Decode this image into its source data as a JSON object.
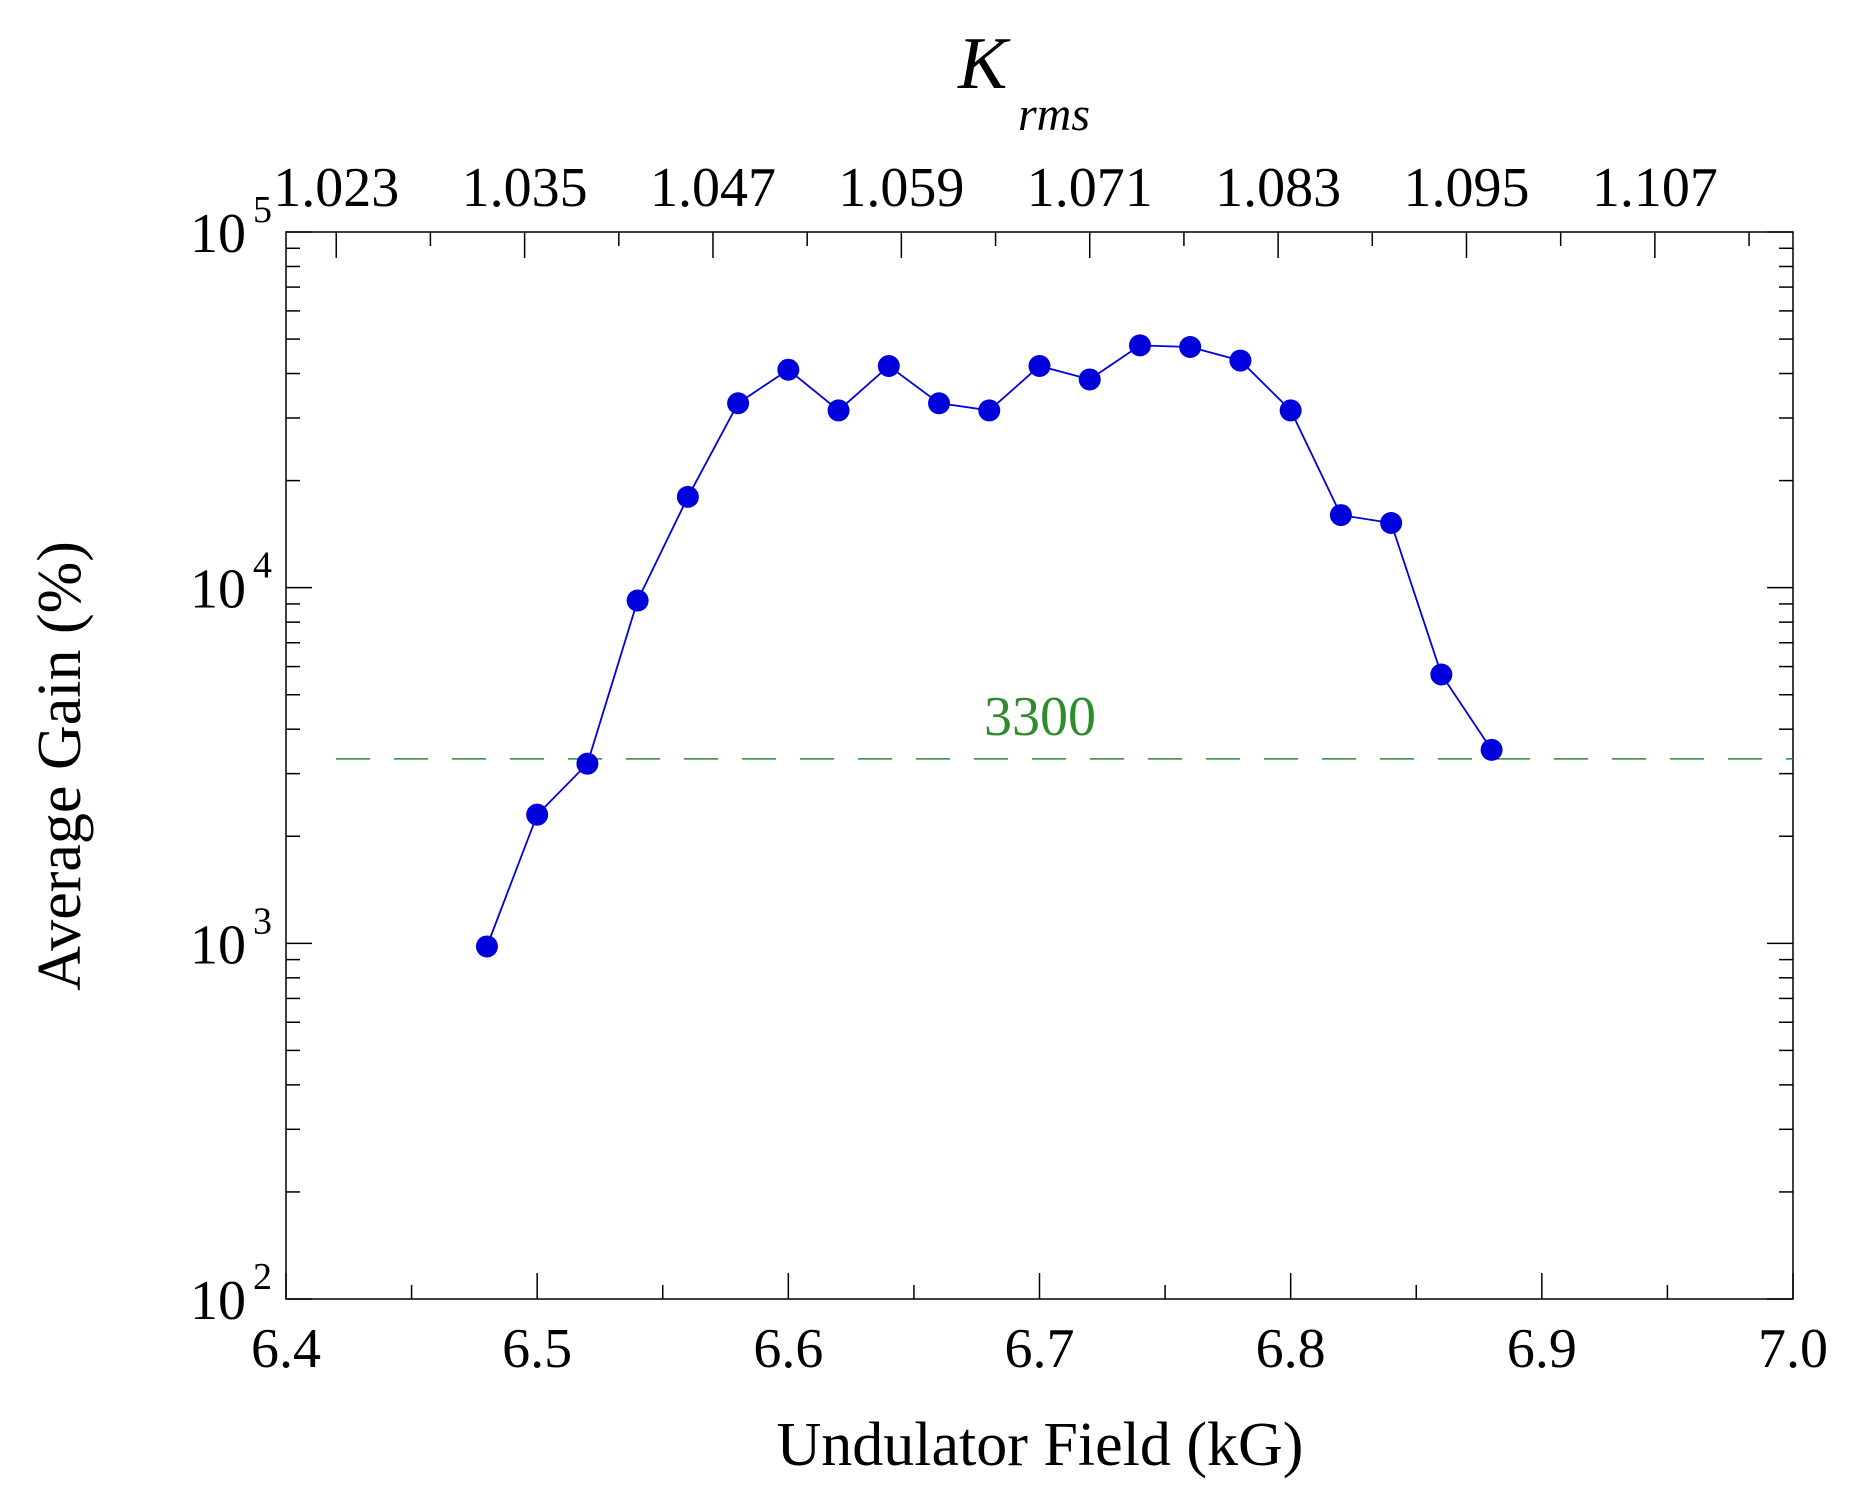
{
  "chart_data": {
    "type": "line",
    "title": "",
    "xlabel": "Undulator Field (kG)",
    "ylabel": "Average Gain (%)",
    "xlim": [
      6.4,
      7.0
    ],
    "ylim": [
      100,
      100000
    ],
    "yscale": "log",
    "x_ticks": [
      "6.4",
      "6.5",
      "6.6",
      "6.7",
      "6.8",
      "6.9",
      "7.0"
    ],
    "y_ticks": [
      {
        "base": "10",
        "exp": "2",
        "value": 100
      },
      {
        "base": "10",
        "exp": "3",
        "value": 1000
      },
      {
        "base": "10",
        "exp": "4",
        "value": 10000
      },
      {
        "base": "10",
        "exp": "5",
        "value": 100000
      }
    ],
    "top_axis": {
      "label_main": "K",
      "label_sub": "rms",
      "ticks": [
        {
          "label": "1.023",
          "field": 6.42
        },
        {
          "label": "1.035",
          "field": 6.495
        },
        {
          "label": "1.047",
          "field": 6.57
        },
        {
          "label": "1.059",
          "field": 6.645
        },
        {
          "label": "1.071",
          "field": 6.72
        },
        {
          "label": "1.083",
          "field": 6.795
        },
        {
          "label": "1.095",
          "field": 6.87
        },
        {
          "label": "1.107",
          "field": 6.945
        }
      ]
    },
    "series": [
      {
        "name": "Average Gain",
        "color": "#0000dd",
        "x": [
          6.48,
          6.5,
          6.52,
          6.54,
          6.56,
          6.58,
          6.6,
          6.62,
          6.64,
          6.66,
          6.68,
          6.7,
          6.72,
          6.74,
          6.76,
          6.78,
          6.8,
          6.82,
          6.84,
          6.86,
          6.88
        ],
        "y": [
          980,
          2300,
          3200,
          9200,
          18000,
          33000,
          41000,
          31500,
          42000,
          33000,
          31500,
          42000,
          38500,
          48000,
          47500,
          43500,
          31500,
          16000,
          15200,
          5700,
          3500
        ]
      }
    ],
    "reference_line": {
      "value": 3300,
      "label": "3300",
      "color": "#2e8b2e",
      "style": "dashed"
    }
  }
}
